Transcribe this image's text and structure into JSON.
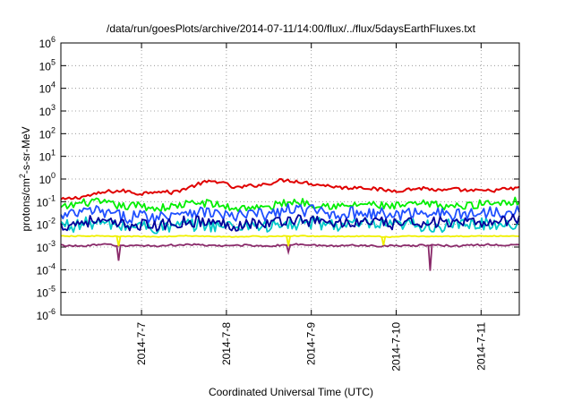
{
  "chart_data": {
    "type": "line",
    "title": "/data/run/goesPlots/archive/2014-07-11/14:00/flux/../flux/5daysEarthFluxes.txt",
    "xlabel": "Coordinated Universal Time (UTC)",
    "ylabel_parts": {
      "pre": "protons/cm",
      "sup": "2",
      "post": "-s-sr-MeV"
    },
    "log_scale_y": true,
    "ylim_exp": [
      -6,
      6
    ],
    "y_ticks": [
      {
        "base": "10",
        "exp": "6"
      },
      {
        "base": "10",
        "exp": "5"
      },
      {
        "base": "10",
        "exp": "4"
      },
      {
        "base": "10",
        "exp": "3"
      },
      {
        "base": "10",
        "exp": "2"
      },
      {
        "base": "10",
        "exp": "1"
      },
      {
        "base": "10",
        "exp": "0"
      },
      {
        "base": "10",
        "exp": "-1"
      },
      {
        "base": "10",
        "exp": "-2"
      },
      {
        "base": "10",
        "exp": "-3"
      },
      {
        "base": "10",
        "exp": "-4"
      },
      {
        "base": "10",
        "exp": "-5"
      },
      {
        "base": "10",
        "exp": "-6"
      }
    ],
    "x_tick_labels": [
      "2014-7-7",
      "2014-7-8",
      "2014-7-9",
      "2014-7-10",
      "2014-7-11"
    ],
    "x_tick_days": [
      0.55,
      1.55,
      2.55,
      3.55,
      4.55
    ],
    "x_range_days": [
      -0.4,
      5.0
    ],
    "grid": true,
    "series": [
      {
        "color": "#e00000",
        "values": [
          0.12,
          0.15,
          0.2,
          0.28,
          0.3,
          0.22,
          0.3,
          0.25,
          0.4,
          0.7,
          0.8,
          0.4,
          0.5,
          0.6,
          0.9,
          0.8,
          0.6,
          0.5,
          0.4,
          0.45,
          0.35,
          0.3,
          0.35,
          0.4,
          0.3,
          0.35,
          0.3,
          0.3,
          0.35,
          0.4
        ]
      },
      {
        "color": "#00ee00",
        "values": [
          0.05,
          0.08,
          0.1,
          0.08,
          0.06,
          0.07,
          0.05,
          0.06,
          0.08,
          0.09,
          0.07,
          0.05,
          0.06,
          0.05,
          0.09,
          0.1,
          0.08,
          0.07,
          0.06,
          0.08,
          0.07,
          0.06,
          0.07,
          0.08,
          0.07,
          0.06,
          0.07,
          0.09,
          0.1,
          0.11
        ]
      },
      {
        "color": "#00c8c8",
        "values": [
          0.01,
          0.009,
          0.012,
          0.01,
          0.008,
          0.009,
          0.007,
          0.008,
          0.009,
          0.01,
          0.009,
          0.008,
          0.01,
          0.008,
          0.009,
          0.01,
          0.012,
          0.01,
          0.009,
          0.01,
          0.009,
          0.008,
          0.01,
          0.009,
          0.008,
          0.009,
          0.01,
          0.011,
          0.01,
          0.012
        ]
      },
      {
        "color": "#2050ff",
        "values": [
          0.02,
          0.03,
          0.04,
          0.03,
          0.02,
          0.025,
          0.02,
          0.03,
          0.04,
          0.035,
          0.03,
          0.02,
          0.03,
          0.025,
          0.04,
          0.045,
          0.04,
          0.03,
          0.03,
          0.035,
          0.03,
          0.025,
          0.03,
          0.04,
          0.03,
          0.025,
          0.03,
          0.035,
          0.04,
          0.045
        ]
      },
      {
        "color": "#00009a",
        "values": [
          0.008,
          0.012,
          0.015,
          0.011,
          0.009,
          0.01,
          0.008,
          0.011,
          0.014,
          0.013,
          0.011,
          0.009,
          0.012,
          0.01,
          0.015,
          0.017,
          0.014,
          0.012,
          0.011,
          0.013,
          0.012,
          0.01,
          0.011,
          0.014,
          0.012,
          0.01,
          0.011,
          0.013,
          0.015,
          0.017
        ]
      },
      {
        "color": "#f0f000",
        "values": [
          0.003,
          0.003,
          0.0031,
          0.003,
          0.0029,
          0.003,
          0.0028,
          0.003,
          0.0031,
          0.003,
          0.0029,
          0.0028,
          0.003,
          0.0029,
          0.003,
          0.0031,
          0.003,
          0.003,
          0.0029,
          0.003,
          0.0029,
          0.0028,
          0.003,
          0.003,
          0.0029,
          0.003,
          0.003,
          0.0031,
          0.003,
          0.003
        ]
      },
      {
        "color": "#8a2a6a",
        "values": [
          0.0012,
          0.0011,
          0.0012,
          0.0013,
          0.0011,
          0.0012,
          0.0011,
          0.0012,
          0.0013,
          0.0012,
          0.0011,
          0.0012,
          0.0012,
          0.0011,
          0.0012,
          0.0013,
          0.0012,
          0.0011,
          0.0012,
          0.0012,
          0.0011,
          0.0012,
          0.0011,
          0.0012,
          0.0012,
          0.0011,
          0.0012,
          0.0013,
          0.0012,
          0.0012
        ]
      }
    ],
    "dips": [
      {
        "color": "#8a2a6a",
        "day": 0.28,
        "value": 0.00025
      },
      {
        "color": "#8a2a6a",
        "day": 3.95,
        "value": 9e-05
      },
      {
        "color": "#8a2a6a",
        "day": 2.28,
        "value": 0.0006
      },
      {
        "color": "#f0f000",
        "day": 0.28,
        "value": 0.0011
      },
      {
        "color": "#f0f000",
        "day": 2.28,
        "value": 0.0011
      },
      {
        "color": "#f0f000",
        "day": 3.4,
        "value": 0.0012
      }
    ]
  }
}
